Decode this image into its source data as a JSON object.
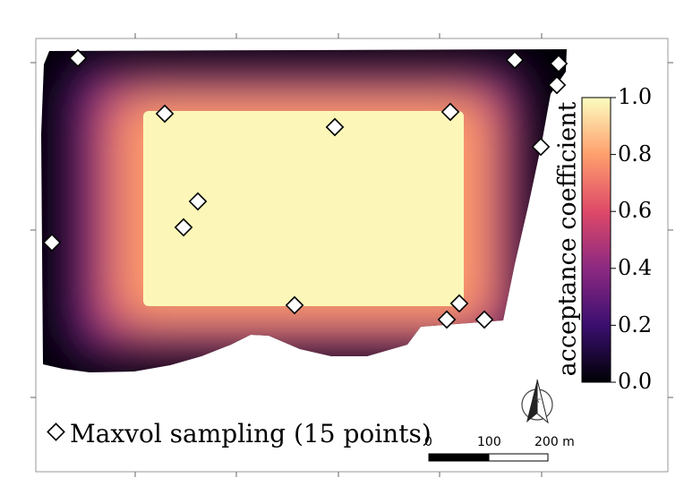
{
  "legend": {
    "label": "Maxvol sampling (15 points)"
  },
  "colorbar": {
    "title": "acceptance coefficient",
    "ticks": [
      "0.0",
      "0.2",
      "0.4",
      "0.6",
      "0.8",
      "1.0"
    ],
    "range": [
      0,
      1
    ],
    "colormap": "magma",
    "stops": [
      "#000004",
      "#3b0f70",
      "#8c2981",
      "#de4968",
      "#fe9f6d",
      "#fcfdbf"
    ]
  },
  "scale_bar": {
    "labels": [
      "0",
      "100",
      "200 m"
    ]
  },
  "north_arrow": {
    "icon": "north-arrow-icon"
  },
  "points_count": 15
}
